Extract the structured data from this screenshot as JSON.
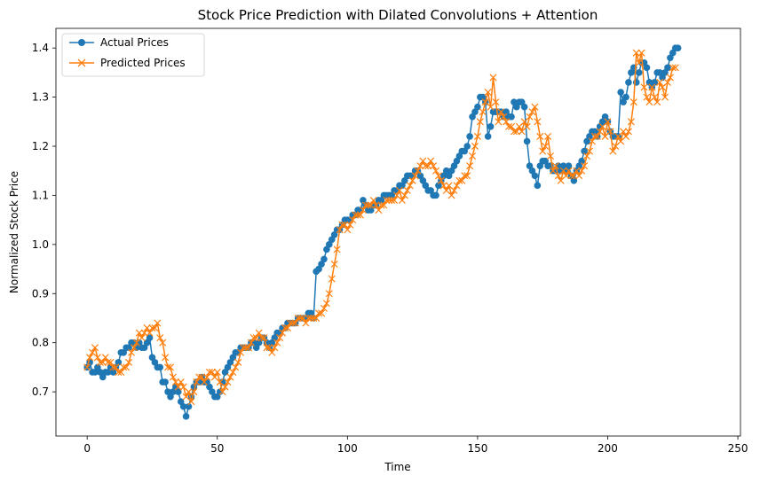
{
  "chart_data": {
    "type": "line",
    "title": "Stock Price Prediction with Dilated Convolutions + Attention",
    "xlabel": "Time",
    "ylabel": "Normalized Stock Price",
    "xlim": [
      -12,
      251
    ],
    "ylim": [
      0.61,
      1.44
    ],
    "xticks": [
      0,
      50,
      100,
      150,
      200,
      250
    ],
    "yticks": [
      0.7,
      0.8,
      0.9,
      1.0,
      1.1,
      1.2,
      1.3,
      1.4
    ],
    "ytick_labels": [
      "0.7",
      "0.8",
      "0.9",
      "1.0",
      "1.1",
      "1.2",
      "1.3",
      "1.4"
    ],
    "grid": false,
    "legend": "upper-left",
    "x_start": 0,
    "x_step": 1,
    "series": [
      {
        "name": "Actual Prices",
        "color": "#1f77b4",
        "marker": "circle",
        "values": [
          0.75,
          0.76,
          0.74,
          0.74,
          0.75,
          0.74,
          0.73,
          0.74,
          0.74,
          0.75,
          0.74,
          0.75,
          0.76,
          0.78,
          0.78,
          0.79,
          0.79,
          0.8,
          0.8,
          0.79,
          0.8,
          0.79,
          0.79,
          0.8,
          0.81,
          0.77,
          0.76,
          0.75,
          0.75,
          0.72,
          0.72,
          0.7,
          0.69,
          0.7,
          0.71,
          0.7,
          0.68,
          0.67,
          0.65,
          0.67,
          0.69,
          0.71,
          0.72,
          0.72,
          0.73,
          0.72,
          0.72,
          0.71,
          0.7,
          0.69,
          0.69,
          0.7,
          0.72,
          0.74,
          0.75,
          0.76,
          0.77,
          0.78,
          0.78,
          0.79,
          0.79,
          0.79,
          0.79,
          0.8,
          0.8,
          0.79,
          0.8,
          0.81,
          0.81,
          0.8,
          0.79,
          0.8,
          0.81,
          0.82,
          0.82,
          0.83,
          0.83,
          0.84,
          0.84,
          0.84,
          0.84,
          0.85,
          0.85,
          0.85,
          0.85,
          0.86,
          0.86,
          0.85,
          0.945,
          0.95,
          0.96,
          0.97,
          0.99,
          1.0,
          1.01,
          1.02,
          1.03,
          1.03,
          1.04,
          1.05,
          1.05,
          1.05,
          1.06,
          1.06,
          1.07,
          1.07,
          1.09,
          1.08,
          1.07,
          1.07,
          1.08,
          1.08,
          1.09,
          1.09,
          1.1,
          1.1,
          1.1,
          1.1,
          1.11,
          1.11,
          1.12,
          1.12,
          1.13,
          1.14,
          1.14,
          1.14,
          1.15,
          1.15,
          1.14,
          1.13,
          1.12,
          1.11,
          1.11,
          1.1,
          1.1,
          1.12,
          1.13,
          1.14,
          1.15,
          1.14,
          1.15,
          1.16,
          1.17,
          1.18,
          1.19,
          1.19,
          1.2,
          1.22,
          1.26,
          1.27,
          1.28,
          1.3,
          1.3,
          1.29,
          1.22,
          1.24,
          1.27,
          1.27,
          1.27,
          1.27,
          1.26,
          1.27,
          1.26,
          1.26,
          1.29,
          1.28,
          1.29,
          1.29,
          1.28,
          1.21,
          1.16,
          1.15,
          1.14,
          1.12,
          1.16,
          1.17,
          1.17,
          1.16,
          1.16,
          1.15,
          1.15,
          1.16,
          1.15,
          1.16,
          1.15,
          1.16,
          1.14,
          1.13,
          1.15,
          1.16,
          1.17,
          1.19,
          1.21,
          1.22,
          1.23,
          1.23,
          1.22,
          1.24,
          1.25,
          1.26,
          1.25,
          1.23,
          1.22,
          1.22,
          1.22,
          1.31,
          1.29,
          1.3,
          1.33,
          1.35,
          1.36,
          1.33,
          1.35,
          1.37,
          1.37,
          1.36,
          1.33,
          1.32,
          1.33,
          1.35,
          1.35,
          1.34,
          1.35,
          1.36,
          1.38,
          1.39,
          1.4,
          1.4
        ]
      },
      {
        "name": "Predicted Prices",
        "color": "#ff7f0e",
        "marker": "x",
        "values": [
          0.75,
          0.77,
          0.78,
          0.79,
          0.77,
          0.76,
          0.76,
          0.77,
          0.76,
          0.76,
          0.75,
          0.75,
          0.74,
          0.74,
          0.75,
          0.75,
          0.76,
          0.78,
          0.79,
          0.8,
          0.82,
          0.81,
          0.82,
          0.83,
          0.82,
          0.83,
          0.83,
          0.84,
          0.81,
          0.8,
          0.77,
          0.75,
          0.75,
          0.73,
          0.72,
          0.71,
          0.72,
          0.71,
          0.69,
          0.7,
          0.68,
          0.7,
          0.72,
          0.73,
          0.73,
          0.72,
          0.73,
          0.74,
          0.74,
          0.73,
          0.74,
          0.72,
          0.7,
          0.71,
          0.72,
          0.73,
          0.74,
          0.75,
          0.76,
          0.78,
          0.79,
          0.79,
          0.79,
          0.8,
          0.81,
          0.81,
          0.82,
          0.81,
          0.81,
          0.79,
          0.79,
          0.78,
          0.79,
          0.8,
          0.81,
          0.82,
          0.83,
          0.83,
          0.84,
          0.84,
          0.84,
          0.85,
          0.85,
          0.85,
          0.84,
          0.85,
          0.85,
          0.85,
          0.85,
          0.86,
          0.86,
          0.87,
          0.88,
          0.9,
          0.93,
          0.96,
          0.99,
          1.03,
          1.04,
          1.04,
          1.03,
          1.04,
          1.05,
          1.06,
          1.06,
          1.06,
          1.07,
          1.08,
          1.08,
          1.08,
          1.09,
          1.08,
          1.07,
          1.08,
          1.08,
          1.09,
          1.09,
          1.09,
          1.09,
          1.1,
          1.11,
          1.09,
          1.1,
          1.11,
          1.12,
          1.13,
          1.14,
          1.15,
          1.16,
          1.17,
          1.16,
          1.16,
          1.17,
          1.16,
          1.15,
          1.14,
          1.13,
          1.12,
          1.11,
          1.12,
          1.1,
          1.11,
          1.12,
          1.13,
          1.13,
          1.14,
          1.14,
          1.16,
          1.18,
          1.2,
          1.22,
          1.25,
          1.27,
          1.29,
          1.31,
          1.28,
          1.34,
          1.29,
          1.25,
          1.27,
          1.26,
          1.25,
          1.24,
          1.24,
          1.23,
          1.23,
          1.24,
          1.23,
          1.25,
          1.24,
          1.26,
          1.27,
          1.28,
          1.25,
          1.22,
          1.19,
          1.2,
          1.22,
          1.18,
          1.15,
          1.16,
          1.14,
          1.13,
          1.15,
          1.14,
          1.15,
          1.14,
          1.14,
          1.15,
          1.14,
          1.15,
          1.16,
          1.18,
          1.19,
          1.21,
          1.22,
          1.22,
          1.23,
          1.24,
          1.22,
          1.25,
          1.23,
          1.19,
          1.2,
          1.22,
          1.21,
          1.23,
          1.22,
          1.23,
          1.25,
          1.29,
          1.39,
          1.37,
          1.39,
          1.32,
          1.3,
          1.29,
          1.32,
          1.3,
          1.29,
          1.33,
          1.32,
          1.3,
          1.33,
          1.34,
          1.36,
          1.36
        ]
      }
    ]
  }
}
